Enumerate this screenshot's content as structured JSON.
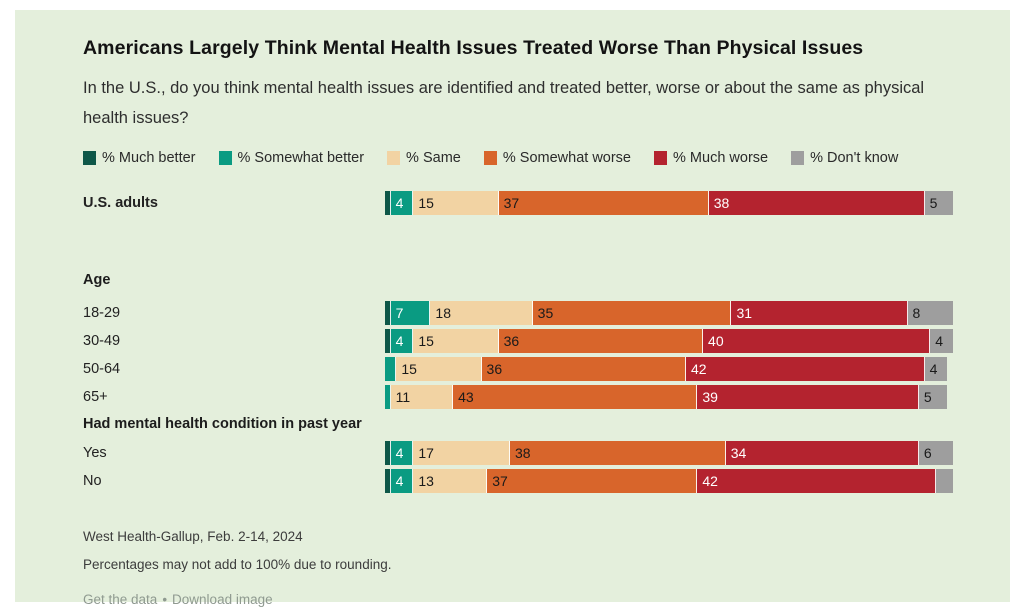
{
  "title": "Americans Largely Think Mental Health Issues Treated Worse Than Physical Issues",
  "subtitle": "In the U.S., do you think mental health issues are identified and treated better, worse or about the same as physical health issues?",
  "colors": {
    "page_background": "#e4efdc",
    "outer_background": "#ffffff"
  },
  "legend": [
    {
      "label": "% Much better",
      "color": "#0e5748"
    },
    {
      "label": "% Somewhat better",
      "color": "#0a9b82"
    },
    {
      "label": "% Same",
      "color": "#f2d3a3"
    },
    {
      "label": "% Somewhat worse",
      "color": "#d8652b"
    },
    {
      "label": "% Much worse",
      "color": "#b4232f"
    },
    {
      "label": "% Don't know",
      "color": "#9e9e9e"
    }
  ],
  "chart_data": {
    "type": "bar",
    "stacked": true,
    "orientation": "horizontal",
    "xlim": [
      0,
      100
    ],
    "series_names": [
      "Much better",
      "Somewhat better",
      "Same",
      "Somewhat worse",
      "Much worse",
      "Don't know"
    ],
    "series_colors": [
      "#0e5748",
      "#0a9b82",
      "#f2d3a3",
      "#d8652b",
      "#b4232f",
      "#9e9e9e"
    ],
    "label_text_colors": [
      "#ffffff",
      "#ffffff",
      "#1a1a1a",
      "#1a1a1a",
      "#ffffff",
      "#1a1a1a"
    ],
    "groups": [
      {
        "header": "",
        "header_class": "",
        "rows": [
          {
            "label": "U.S. adults",
            "bold": true,
            "values": [
              1,
              4,
              15,
              37,
              38,
              5
            ],
            "labels": [
              "",
              "4",
              "15",
              "37",
              "38",
              "5"
            ]
          }
        ]
      },
      {
        "header": "Age",
        "header_class": "gh-age",
        "rows": [
          {
            "label": "18-29",
            "bold": false,
            "values": [
              1,
              7,
              18,
              35,
              31,
              8
            ],
            "labels": [
              "",
              "7",
              "18",
              "35",
              "31",
              "8"
            ]
          },
          {
            "label": "30-49",
            "bold": false,
            "values": [
              1,
              4,
              15,
              36,
              40,
              4
            ],
            "labels": [
              "",
              "4",
              "15",
              "36",
              "40",
              "4"
            ]
          },
          {
            "label": "50-64",
            "bold": false,
            "values": [
              0,
              2,
              15,
              36,
              42,
              4
            ],
            "labels": [
              "",
              "",
              "15",
              "36",
              "42",
              "4"
            ]
          },
          {
            "label": "65+",
            "bold": false,
            "values": [
              0,
              1,
              11,
              43,
              39,
              5
            ],
            "labels": [
              "",
              "",
              "11",
              "43",
              "39",
              "5"
            ]
          }
        ]
      },
      {
        "header": "Had mental health condition in past year",
        "header_class": "gh-condition",
        "rows": [
          {
            "label": "Yes",
            "bold": false,
            "values": [
              1,
              4,
              17,
              38,
              34,
              6
            ],
            "labels": [
              "",
              "4",
              "17",
              "38",
              "34",
              "6"
            ]
          },
          {
            "label": "No",
            "bold": false,
            "values": [
              1,
              4,
              13,
              37,
              42,
              3
            ],
            "labels": [
              "",
              "4",
              "13",
              "37",
              "42",
              ""
            ]
          }
        ]
      }
    ]
  },
  "footer": {
    "source": "West Health-Gallup, Feb. 2-14, 2024",
    "note": "Percentages may not add to 100% due to rounding.",
    "link_get_data": "Get the data",
    "link_separator": "•",
    "link_download": "Download image"
  }
}
